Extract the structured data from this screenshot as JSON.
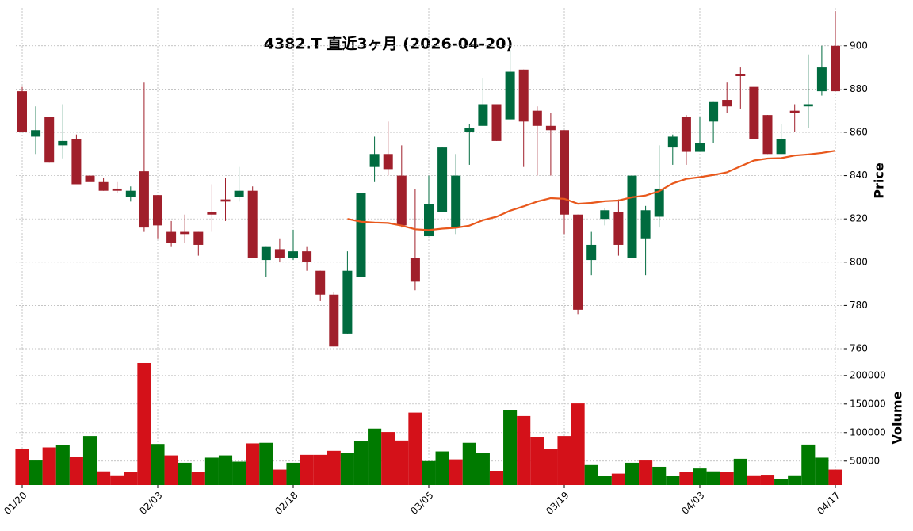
{
  "chart_data": [
    {
      "type": "candlestick",
      "title": "4382.T  直近3ヶ月  (2026-04-20)",
      "ylabel": "Price",
      "categories": [
        "01/20",
        null,
        null,
        null,
        null,
        null,
        null,
        null,
        null,
        null,
        "02/03",
        null,
        null,
        null,
        null,
        null,
        null,
        null,
        null,
        null,
        "02/18",
        null,
        null,
        null,
        null,
        null,
        null,
        null,
        null,
        null,
        "03/05",
        null,
        null,
        null,
        null,
        null,
        null,
        null,
        null,
        null,
        "03/19",
        null,
        null,
        null,
        null,
        null,
        null,
        null,
        null,
        null,
        "04/03",
        null,
        null,
        null,
        null,
        null,
        null,
        null,
        null,
        null,
        "04/17"
      ],
      "open": [
        879,
        858,
        867,
        854,
        857,
        840,
        837,
        834,
        830,
        842,
        831,
        814,
        814,
        814,
        823,
        829,
        830,
        833,
        801,
        806,
        802,
        805,
        796,
        785,
        767,
        793,
        844,
        850,
        840,
        802,
        812,
        823,
        816,
        860,
        863,
        873,
        866,
        889,
        870,
        863,
        861,
        822,
        801,
        820,
        823,
        802,
        811,
        821,
        853,
        867,
        851,
        865,
        875,
        887,
        881,
        868,
        850,
        870,
        872,
        879,
        900
      ],
      "high": [
        881,
        872,
        867,
        873,
        859,
        843,
        839,
        837,
        835,
        883,
        831,
        819,
        822,
        814,
        836,
        839,
        844,
        835,
        807,
        811,
        815,
        807,
        796,
        786,
        805,
        833,
        858,
        865,
        854,
        834,
        840,
        853,
        850,
        864,
        885,
        873,
        898,
        889,
        872,
        869,
        861,
        822,
        814,
        825,
        829,
        840,
        826,
        854,
        859,
        868,
        867,
        874,
        883,
        890,
        881,
        868,
        864,
        873,
        896,
        900,
        916
      ],
      "low": [
        860,
        850,
        846,
        848,
        836,
        834,
        833,
        832,
        828,
        814,
        811,
        807,
        809,
        803,
        814,
        819,
        828,
        802,
        793,
        800,
        801,
        796,
        782,
        761,
        767,
        793,
        837,
        840,
        816,
        787,
        812,
        823,
        813,
        845,
        863,
        856,
        866,
        844,
        840,
        840,
        813,
        776,
        794,
        817,
        803,
        802,
        794,
        816,
        845,
        845,
        851,
        855,
        869,
        871,
        857,
        850,
        850,
        860,
        862,
        877,
        879
      ],
      "close": [
        860,
        861,
        846,
        856,
        836,
        837,
        833,
        833,
        833,
        816,
        817,
        809,
        813,
        808,
        822,
        828,
        833,
        802,
        807,
        802,
        805,
        800,
        785,
        761,
        796,
        832,
        850,
        843,
        817,
        791,
        827,
        853,
        840,
        862,
        873,
        856,
        888,
        865,
        863,
        861,
        822,
        778,
        808,
        824,
        808,
        840,
        824,
        834,
        858,
        851,
        855,
        874,
        872,
        886,
        857,
        850,
        857,
        869,
        873,
        890,
        879
      ],
      "up_color": "#006b3f",
      "down_color": "#a01f2b",
      "series": [
        {
          "color": "#e8581c",
          "values": [
            null,
            null,
            null,
            null,
            null,
            null,
            null,
            null,
            null,
            null,
            null,
            null,
            null,
            null,
            null,
            null,
            null,
            null,
            null,
            null,
            null,
            null,
            null,
            null,
            820,
            818.7,
            818.3,
            818.1,
            816.9,
            815.2,
            814.8,
            815.5,
            815.9,
            816.9,
            819.4,
            821,
            823.8,
            825.8,
            828,
            829.6,
            829.3,
            827,
            827.4,
            828.2,
            828.5,
            830,
            830.8,
            832.8,
            836.4,
            838.5,
            839.3,
            840.3,
            841.5,
            844.3,
            847,
            847.9,
            848.1,
            849.3,
            849.8,
            850.5,
            851.5
          ]
        }
      ],
      "ylim": [
        760,
        917.5
      ],
      "yticks": [
        760,
        780,
        800,
        820,
        840,
        860,
        880,
        900
      ],
      "grid": true
    },
    {
      "type": "bar",
      "ylabel": "Volume",
      "values": [
        71000,
        51000,
        74000,
        78000,
        58000,
        94000,
        32000,
        25000,
        31000,
        222000,
        80000,
        60000,
        47000,
        31000,
        56000,
        60000,
        49000,
        81000,
        82000,
        35000,
        47000,
        61000,
        61000,
        68000,
        64000,
        85000,
        107000,
        101000,
        86000,
        135000,
        50000,
        67000,
        53000,
        82000,
        64000,
        33000,
        140000,
        129000,
        92000,
        71000,
        94000,
        151000,
        43000,
        24000,
        28000,
        47000,
        51000,
        40000,
        24000,
        31000,
        37000,
        32000,
        31000,
        54000,
        25000,
        26000,
        19000,
        25000,
        79000,
        56000,
        35000
      ],
      "colors": [
        "#d41119",
        "#007a00",
        "#d41119",
        "#007a00",
        "#d41119",
        "#007a00",
        "#d41119",
        "#d41119",
        "#d41119",
        "#d41119",
        "#007a00",
        "#d41119",
        "#007a00",
        "#d41119",
        "#007a00",
        "#007a00",
        "#007a00",
        "#d41119",
        "#007a00",
        "#d41119",
        "#007a00",
        "#d41119",
        "#d41119",
        "#d41119",
        "#007a00",
        "#007a00",
        "#007a00",
        "#d41119",
        "#d41119",
        "#d41119",
        "#007a00",
        "#007a00",
        "#d41119",
        "#007a00",
        "#007a00",
        "#d41119",
        "#007a00",
        "#d41119",
        "#d41119",
        "#d41119",
        "#d41119",
        "#d41119",
        "#007a00",
        "#007a00",
        "#d41119",
        "#007a00",
        "#d41119",
        "#007a00",
        "#007a00",
        "#d41119",
        "#007a00",
        "#007a00",
        "#d41119",
        "#007a00",
        "#d41119",
        "#d41119",
        "#007a00",
        "#007a00",
        "#007a00",
        "#007a00",
        "#d41119"
      ],
      "ylim": [
        8000,
        247000
      ],
      "yticks": [
        50000,
        100000,
        150000,
        200000
      ],
      "grid": true
    }
  ]
}
